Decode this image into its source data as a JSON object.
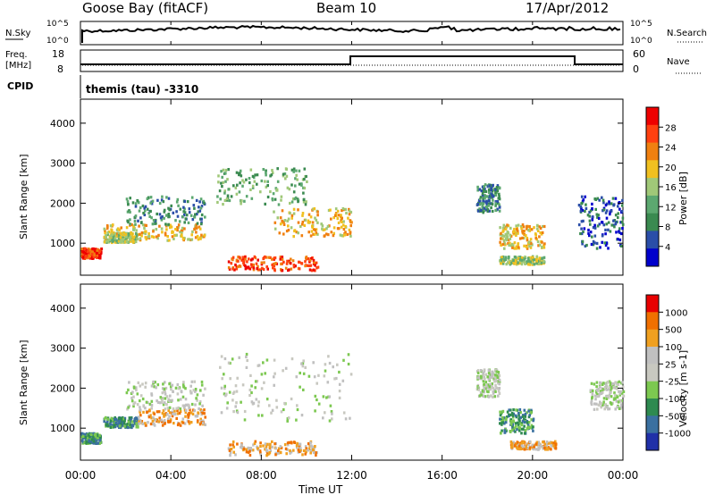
{
  "header": {
    "station": "Goose Bay (fitACF)",
    "beam": "Beam 10",
    "date": "17/Apr/2012"
  },
  "top_panels": {
    "nsky_label": "N.Sky",
    "nsky_ticks": [
      "10^5",
      "10^0"
    ],
    "nsearch_label": "N.Search",
    "nsearch_ticks": [
      "10^5",
      "10^0"
    ],
    "freq_label_1": "Freq.",
    "freq_label_2": "[MHz]",
    "freq_ticks": [
      "18",
      "8"
    ],
    "nave_label": "Nave",
    "nave_ticks": [
      "60",
      "0"
    ],
    "cpid_label": "CPID",
    "cpid_text": "themis (tau) -3310"
  },
  "chart_data": [
    {
      "type": "heatmap",
      "name": "power-panel",
      "ylabel": "Slant Range [km]",
      "yticks": [
        1000,
        2000,
        3000,
        4000
      ],
      "ylim": [
        200,
        4600
      ],
      "xlim": [
        0,
        24
      ],
      "colorbar_label": "Power [dB]",
      "colorbar_ticks": [
        "28",
        "24",
        "20",
        "16",
        "12",
        "8",
        "4"
      ],
      "colors": [
        "#0000cc",
        "#2a4ea8",
        "#3a8a50",
        "#5ca870",
        "#a0c878",
        "#f0c020",
        "#f08010",
        "#ff4010",
        "#ee0000"
      ],
      "regions": [
        {
          "x": [
            0.0,
            0.9
          ],
          "y": [
            650,
            900
          ],
          "level": 7
        },
        {
          "x": [
            1.0,
            2.5
          ],
          "y": [
            1050,
            1300
          ],
          "level": 4
        },
        {
          "x": [
            1.0,
            5.5
          ],
          "y": [
            1100,
            1500
          ],
          "level": 5
        },
        {
          "x": [
            2.0,
            5.5
          ],
          "y": [
            1500,
            2200
          ],
          "level": 2
        },
        {
          "x": [
            6.0,
            10.0
          ],
          "y": [
            2000,
            2900
          ],
          "level": 3
        },
        {
          "x": [
            8.5,
            12.0
          ],
          "y": [
            1200,
            1900
          ],
          "level": 5
        },
        {
          "x": [
            6.5,
            10.5
          ],
          "y": [
            350,
            700
          ],
          "level": 7
        },
        {
          "x": [
            17.5,
            18.5
          ],
          "y": [
            1800,
            2500
          ],
          "level": 2
        },
        {
          "x": [
            18.5,
            20.5
          ],
          "y": [
            900,
            1500
          ],
          "level": 5
        },
        {
          "x": [
            18.5,
            20.5
          ],
          "y": [
            500,
            700
          ],
          "level": 4
        },
        {
          "x": [
            22.0,
            24.0
          ],
          "y": [
            900,
            2200
          ],
          "level": 1
        }
      ]
    },
    {
      "type": "heatmap",
      "name": "velocity-panel",
      "ylabel": "Slant Range [km]",
      "yticks": [
        1000,
        2000,
        3000,
        4000
      ],
      "ylim": [
        200,
        4600
      ],
      "xlim": [
        0,
        24
      ],
      "colorbar_label": "Velocity [m s-1]",
      "colorbar_ticks": [
        "1000",
        "500",
        "100",
        "25",
        "-25",
        "-100",
        "-500",
        "-1000"
      ],
      "colors": [
        "#2030a8",
        "#3a70a0",
        "#2e8a50",
        "#7cc850",
        "#c8c8c0",
        "#c0c0c0",
        "#f0a020",
        "#f07000",
        "#e80000"
      ],
      "regions": [
        {
          "x": [
            0.0,
            0.9
          ],
          "y": [
            650,
            900
          ],
          "level": 2
        },
        {
          "x": [
            1.0,
            2.5
          ],
          "y": [
            1050,
            1300
          ],
          "level": 2
        },
        {
          "x": [
            2.5,
            5.5
          ],
          "y": [
            1100,
            1500
          ],
          "level": 6
        },
        {
          "x": [
            2.0,
            5.5
          ],
          "y": [
            1500,
            2200
          ],
          "level": 4
        },
        {
          "x": [
            6.0,
            12.0
          ],
          "y": [
            1200,
            2900
          ],
          "level": 4
        },
        {
          "x": [
            6.5,
            10.5
          ],
          "y": [
            350,
            700
          ],
          "level": 6
        },
        {
          "x": [
            17.5,
            18.5
          ],
          "y": [
            1800,
            2500
          ],
          "level": 4
        },
        {
          "x": [
            18.5,
            20.0
          ],
          "y": [
            900,
            1500
          ],
          "level": 2
        },
        {
          "x": [
            19.0,
            21.0
          ],
          "y": [
            500,
            700
          ],
          "level": 6
        },
        {
          "x": [
            22.5,
            24.0
          ],
          "y": [
            1500,
            2200
          ],
          "level": 4
        }
      ]
    }
  ],
  "xaxis": {
    "ticks": [
      "00:00",
      "04:00",
      "08:00",
      "12:00",
      "16:00",
      "20:00",
      "00:00"
    ],
    "label": "Time UT"
  }
}
